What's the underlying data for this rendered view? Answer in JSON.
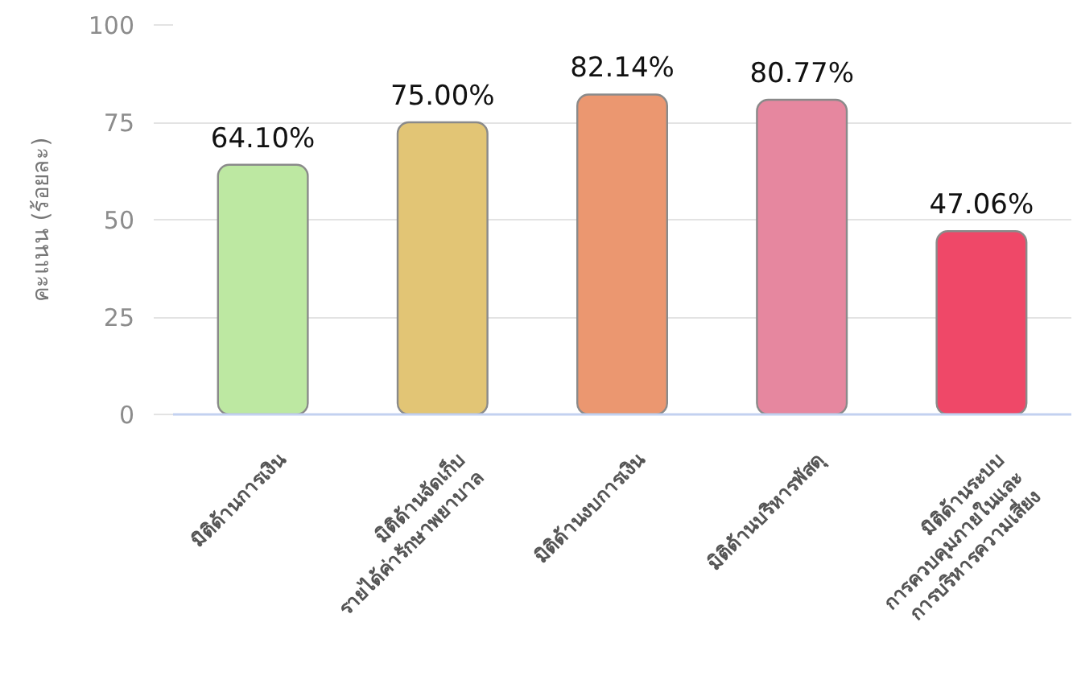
{
  "chart_data": {
    "type": "bar",
    "ylabel": "คะแนน (ร้อยละ)",
    "categories": [
      "มิติด้านการเงิน",
      "มิติด้านจัดเก็บ\nรายได้ค่ารักษาพยาบาล",
      "มิติด้านงบการเงิน",
      "มิติด้านบริหารพัสดุ",
      "มิติด้านระบบ\nการควบคุมภายในและ\nการบริหารความเสี่ยง"
    ],
    "values": [
      64.1,
      75.0,
      82.14,
      80.77,
      47.06
    ],
    "value_labels": [
      "64.10%",
      "75.00%",
      "82.14%",
      "80.77%",
      "47.06%"
    ],
    "colors": [
      "#bde8a2",
      "#e2c575",
      "#eb9770",
      "#e6879f",
      "#ef4868"
    ],
    "ylim": [
      0,
      100
    ],
    "yticks": [
      0,
      25,
      50,
      75,
      100
    ],
    "grid": "y"
  }
}
